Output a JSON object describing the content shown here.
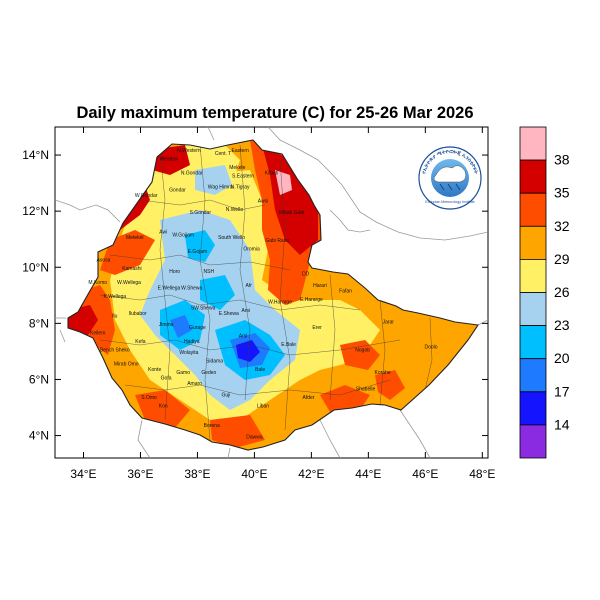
{
  "title": "Daily maximum temperature (C) for 25-26 Mar 2026",
  "map": {
    "lon_range": [
      33,
      48.2
    ],
    "lat_range": [
      3.2,
      15
    ],
    "lon_ticks": [
      {
        "value": 34,
        "label": "34°E"
      },
      {
        "value": 36,
        "label": "36°E"
      },
      {
        "value": 38,
        "label": "38°E"
      },
      {
        "value": 40,
        "label": "40°E"
      },
      {
        "value": 42,
        "label": "42°E"
      },
      {
        "value": 44,
        "label": "44°E"
      },
      {
        "value": 46,
        "label": "46°E"
      },
      {
        "value": 48,
        "label": "48°E"
      }
    ],
    "lat_ticks": [
      {
        "value": 4,
        "label": "4°N"
      },
      {
        "value": 6,
        "label": "6°N"
      },
      {
        "value": 8,
        "label": "8°N"
      },
      {
        "value": 10,
        "label": "10°N"
      },
      {
        "value": 12,
        "label": "12°N"
      },
      {
        "value": 14,
        "label": "14°N"
      }
    ],
    "regions": [
      {
        "name": "N.Western",
        "lon": 37.7,
        "lat": 14.1
      },
      {
        "name": "Cent. T",
        "lon": 38.9,
        "lat": 14.0
      },
      {
        "name": "Eastern",
        "lon": 39.5,
        "lat": 14.1
      },
      {
        "name": "Western",
        "lon": 37.0,
        "lat": 13.8
      },
      {
        "name": "Mekele",
        "lon": 39.4,
        "lat": 13.5
      },
      {
        "name": "Kilbati",
        "lon": 40.6,
        "lat": 13.3
      },
      {
        "name": "N.Gondar",
        "lon": 37.8,
        "lat": 13.3
      },
      {
        "name": "S.Eastern",
        "lon": 39.6,
        "lat": 13.2
      },
      {
        "name": "Gondar",
        "lon": 37.3,
        "lat": 12.7
      },
      {
        "name": "Wag Himra",
        "lon": 38.8,
        "lat": 12.8
      },
      {
        "name": "N.Tigray",
        "lon": 39.5,
        "lat": 12.8
      },
      {
        "name": "W.Gondar",
        "lon": 36.2,
        "lat": 12.5
      },
      {
        "name": "Awsi",
        "lon": 40.3,
        "lat": 12.3
      },
      {
        "name": "S.Gondar",
        "lon": 38.1,
        "lat": 11.9
      },
      {
        "name": "N.Wello",
        "lon": 39.3,
        "lat": 12.0
      },
      {
        "name": "Kilbati Gabi",
        "lon": 41.3,
        "lat": 11.9
      },
      {
        "name": "Metekel",
        "lon": 35.8,
        "lat": 11.0
      },
      {
        "name": "Awi",
        "lon": 36.8,
        "lat": 11.2
      },
      {
        "name": "W.Gojjam",
        "lon": 37.5,
        "lat": 11.1
      },
      {
        "name": "South Wello",
        "lon": 39.2,
        "lat": 11.0
      },
      {
        "name": "Gabi Rasu",
        "lon": 40.8,
        "lat": 10.9
      },
      {
        "name": "E.Gojam",
        "lon": 38.0,
        "lat": 10.5
      },
      {
        "name": "Oromia",
        "lon": 39.9,
        "lat": 10.6
      },
      {
        "name": "Asosa",
        "lon": 34.7,
        "lat": 10.2
      },
      {
        "name": "Kamashi",
        "lon": 35.7,
        "lat": 9.9
      },
      {
        "name": "Horo",
        "lon": 37.2,
        "lat": 9.8
      },
      {
        "name": "NSH",
        "lon": 38.4,
        "lat": 9.8
      },
      {
        "name": "DD",
        "lon": 41.8,
        "lat": 9.7
      },
      {
        "name": "Harari",
        "lon": 42.3,
        "lat": 9.3
      },
      {
        "name": "M.Komo",
        "lon": 34.5,
        "lat": 9.4
      },
      {
        "name": "W.Wellega",
        "lon": 35.6,
        "lat": 9.4
      },
      {
        "name": "E.Wellega",
        "lon": 37.0,
        "lat": 9.2
      },
      {
        "name": "W.Shewa",
        "lon": 37.8,
        "lat": 9.2
      },
      {
        "name": "Afr",
        "lon": 39.8,
        "lat": 9.3
      },
      {
        "name": "Fafan",
        "lon": 43.2,
        "lat": 9.1
      },
      {
        "name": "K.Wellega",
        "lon": 35.1,
        "lat": 8.9
      },
      {
        "name": "Ilubabor",
        "lon": 35.9,
        "lat": 8.3
      },
      {
        "name": "Arsi",
        "lon": 39.7,
        "lat": 8.4
      },
      {
        "name": "W.Hararge",
        "lon": 40.9,
        "lat": 8.7
      },
      {
        "name": "E.Hararge",
        "lon": 42.0,
        "lat": 8.8
      },
      {
        "name": "Ilu",
        "lon": 35.1,
        "lat": 8.2
      },
      {
        "name": "SW.Shewa",
        "lon": 38.2,
        "lat": 8.5
      },
      {
        "name": "E.Shewa",
        "lon": 39.1,
        "lat": 8.3
      },
      {
        "name": "Jarar",
        "lon": 44.7,
        "lat": 8.0
      },
      {
        "name": "Jimma",
        "lon": 36.9,
        "lat": 7.9
      },
      {
        "name": "Erer",
        "lon": 42.2,
        "lat": 7.8
      },
      {
        "name": "Kellem",
        "lon": 34.5,
        "lat": 7.6
      },
      {
        "name": "Gurage",
        "lon": 38.0,
        "lat": 7.8
      },
      {
        "name": "Bench Sheko",
        "lon": 35.1,
        "lat": 7.0
      },
      {
        "name": "Arsi",
        "lon": 39.6,
        "lat": 7.5
      },
      {
        "name": "Kefa",
        "lon": 36.0,
        "lat": 7.3
      },
      {
        "name": "Hadiya",
        "lon": 37.8,
        "lat": 7.3
      },
      {
        "name": "E.Bale",
        "lon": 41.2,
        "lat": 7.2
      },
      {
        "name": "Nogob",
        "lon": 43.8,
        "lat": 7.0
      },
      {
        "name": "Doolo",
        "lon": 46.2,
        "lat": 7.1
      },
      {
        "name": "Wolayita",
        "lon": 37.7,
        "lat": 6.9
      },
      {
        "name": "Sidama",
        "lon": 38.6,
        "lat": 6.6
      },
      {
        "name": "Mirab Omo",
        "lon": 35.5,
        "lat": 6.5
      },
      {
        "name": "Bale",
        "lon": 40.2,
        "lat": 6.3
      },
      {
        "name": "Konte",
        "lon": 36.5,
        "lat": 6.3
      },
      {
        "name": "Gamo",
        "lon": 37.5,
        "lat": 6.2
      },
      {
        "name": "Gedeo",
        "lon": 38.4,
        "lat": 6.2
      },
      {
        "name": "Korahe",
        "lon": 44.5,
        "lat": 6.2
      },
      {
        "name": "Gofa",
        "lon": 36.9,
        "lat": 6.0
      },
      {
        "name": "Amaro",
        "lon": 37.9,
        "lat": 5.8
      },
      {
        "name": "Guji",
        "lon": 39.0,
        "lat": 5.4
      },
      {
        "name": "Shabelle",
        "lon": 43.9,
        "lat": 5.6
      },
      {
        "name": "S.Omo",
        "lon": 36.3,
        "lat": 5.3
      },
      {
        "name": "Kon",
        "lon": 36.8,
        "lat": 5.0
      },
      {
        "name": "Liban",
        "lon": 40.3,
        "lat": 5.0
      },
      {
        "name": "Afder",
        "lon": 41.9,
        "lat": 5.3
      },
      {
        "name": "Borena",
        "lon": 38.5,
        "lat": 4.3
      },
      {
        "name": "Dawwa",
        "lon": 40.0,
        "lat": 3.9
      }
    ]
  },
  "colorbar": {
    "labels": [
      "38",
      "35",
      "32",
      "29",
      "26",
      "23",
      "20",
      "17",
      "14"
    ],
    "colors": [
      "#ffb6c1",
      "#d40000",
      "#ff4d00",
      "#ffa500",
      "#fff066",
      "#a6d2f0",
      "#00bfff",
      "#1e7bff",
      "#1414ff",
      "#8a2be2"
    ]
  },
  "logo": {
    "top_text": "የኢትዮጵያ ሜትዮሮሎጂ ኢንስቲትዩት",
    "bottom_text": "Ethiopian Meteorology Institute"
  }
}
